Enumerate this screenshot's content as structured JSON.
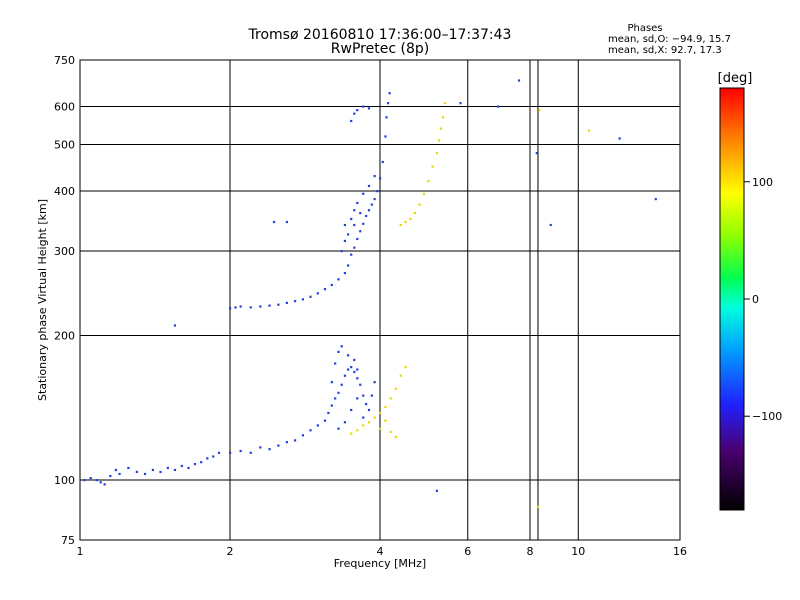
{
  "title_line1": "Tromsø 20160810 17:36:00–17:37:43",
  "title_line2": "RwPretec (8p)",
  "phases": {
    "heading": "Phases",
    "line_o": "mean, sd,O: −94.9, 15.7",
    "line_x": "mean, sd,X:  92.7, 17.3"
  },
  "colorbar": {
    "label": "[deg]",
    "range": [
      -180,
      180
    ],
    "ticks": [
      {
        "value": 100,
        "label": "100"
      },
      {
        "value": 0,
        "label": "0"
      },
      {
        "value": -100,
        "label": "−100"
      }
    ]
  },
  "chart_data": {
    "type": "scatter",
    "xlabel": "Frequency [MHz]",
    "ylabel": "Stationary phase Virtual Height [km]",
    "x_scale": "log2",
    "y_scale": "log",
    "xlim": [
      1,
      16
    ],
    "ylim": [
      75,
      750
    ],
    "x_ticks": [
      {
        "value": 1,
        "label": "1"
      },
      {
        "value": 2,
        "label": "2"
      },
      {
        "value": 4,
        "label": "4"
      },
      {
        "value": 6,
        "label": "6"
      },
      {
        "value": 8,
        "label": "8"
      },
      {
        "value": 10,
        "label": "10"
      },
      {
        "value": 16,
        "label": "16"
      }
    ],
    "x_gridlines": [
      2,
      4,
      6,
      8,
      8.3,
      10
    ],
    "y_ticks": [
      {
        "value": 75,
        "label": "75"
      },
      {
        "value": 100,
        "label": "100"
      },
      {
        "value": 200,
        "label": "200"
      },
      {
        "value": 300,
        "label": "300"
      },
      {
        "value": 400,
        "label": "400"
      },
      {
        "value": 500,
        "label": "500"
      },
      {
        "value": 600,
        "label": "600"
      },
      {
        "value": 750,
        "label": "750"
      }
    ],
    "y_gridlines": [
      100,
      200,
      300,
      400,
      500,
      600
    ],
    "series": [
      {
        "name": "O",
        "points": [
          [
            1.02,
            100
          ],
          [
            1.05,
            101
          ],
          [
            1.08,
            100
          ],
          [
            1.1,
            99
          ],
          [
            1.12,
            98
          ],
          [
            1.15,
            102
          ],
          [
            1.18,
            105
          ],
          [
            1.2,
            103
          ],
          [
            1.25,
            106
          ],
          [
            1.3,
            104
          ],
          [
            1.35,
            103
          ],
          [
            1.4,
            105
          ],
          [
            1.45,
            104
          ],
          [
            1.5,
            106
          ],
          [
            1.55,
            105
          ],
          [
            1.6,
            107
          ],
          [
            1.65,
            106
          ],
          [
            1.7,
            108
          ],
          [
            1.75,
            109
          ],
          [
            1.8,
            111
          ],
          [
            1.85,
            112
          ],
          [
            1.9,
            114
          ],
          [
            2.0,
            114
          ],
          [
            2.1,
            115
          ],
          [
            2.2,
            114
          ],
          [
            2.3,
            117
          ],
          [
            2.4,
            116
          ],
          [
            2.5,
            118
          ],
          [
            2.6,
            120
          ],
          [
            2.7,
            121
          ],
          [
            2.8,
            124
          ],
          [
            2.9,
            127
          ],
          [
            3.0,
            130
          ],
          [
            3.1,
            133
          ],
          [
            3.15,
            138
          ],
          [
            3.2,
            143
          ],
          [
            3.25,
            148
          ],
          [
            3.3,
            152
          ],
          [
            3.35,
            158
          ],
          [
            3.4,
            165
          ],
          [
            3.45,
            170
          ],
          [
            3.5,
            172
          ],
          [
            3.55,
            168
          ],
          [
            3.6,
            163
          ],
          [
            3.65,
            158
          ],
          [
            3.7,
            150
          ],
          [
            3.75,
            144
          ],
          [
            3.3,
            128
          ],
          [
            3.4,
            132
          ],
          [
            3.5,
            140
          ],
          [
            3.6,
            148
          ],
          [
            3.7,
            135
          ],
          [
            3.8,
            140
          ],
          [
            3.85,
            150
          ],
          [
            3.9,
            160
          ],
          [
            3.2,
            160
          ],
          [
            3.25,
            175
          ],
          [
            3.3,
            185
          ],
          [
            3.35,
            190
          ],
          [
            3.45,
            182
          ],
          [
            3.55,
            178
          ],
          [
            3.6,
            170
          ],
          [
            2.0,
            228
          ],
          [
            2.05,
            229
          ],
          [
            2.1,
            230
          ],
          [
            2.2,
            229
          ],
          [
            2.3,
            230
          ],
          [
            2.4,
            231
          ],
          [
            2.5,
            232
          ],
          [
            2.6,
            234
          ],
          [
            2.7,
            236
          ],
          [
            2.8,
            238
          ],
          [
            2.9,
            241
          ],
          [
            3.0,
            245
          ],
          [
            3.1,
            250
          ],
          [
            3.2,
            255
          ],
          [
            3.3,
            262
          ],
          [
            3.4,
            270
          ],
          [
            3.45,
            280
          ],
          [
            3.5,
            295
          ],
          [
            3.55,
            305
          ],
          [
            3.6,
            318
          ],
          [
            3.65,
            330
          ],
          [
            3.7,
            342
          ],
          [
            3.75,
            355
          ],
          [
            3.8,
            365
          ],
          [
            3.85,
            375
          ],
          [
            3.9,
            385
          ],
          [
            3.95,
            400
          ],
          [
            4.0,
            425
          ],
          [
            4.05,
            460
          ],
          [
            4.1,
            520
          ],
          [
            4.12,
            570
          ],
          [
            4.15,
            610
          ],
          [
            4.18,
            640
          ],
          [
            3.4,
            340
          ],
          [
            3.5,
            350
          ],
          [
            3.55,
            365
          ],
          [
            3.6,
            378
          ],
          [
            3.7,
            395
          ],
          [
            3.8,
            410
          ],
          [
            3.9,
            430
          ],
          [
            3.5,
            560
          ],
          [
            3.55,
            580
          ],
          [
            3.6,
            590
          ],
          [
            3.7,
            600
          ],
          [
            3.8,
            595
          ],
          [
            3.35,
            300
          ],
          [
            3.4,
            315
          ],
          [
            3.45,
            325
          ],
          [
            3.55,
            340
          ],
          [
            3.65,
            360
          ],
          [
            1.55,
            210
          ],
          [
            2.45,
            345
          ],
          [
            2.6,
            345
          ],
          [
            5.2,
            95
          ],
          [
            5.8,
            610
          ],
          [
            6.9,
            600
          ],
          [
            7.6,
            680
          ],
          [
            8.25,
            480
          ],
          [
            8.8,
            340
          ],
          [
            12.1,
            515
          ],
          [
            14.3,
            385
          ]
        ]
      },
      {
        "name": "X",
        "points": [
          [
            3.5,
            125
          ],
          [
            3.6,
            127
          ],
          [
            3.7,
            130
          ],
          [
            3.8,
            132
          ],
          [
            3.9,
            135
          ],
          [
            4.0,
            138
          ],
          [
            4.1,
            142
          ],
          [
            4.2,
            148
          ],
          [
            4.3,
            155
          ],
          [
            4.4,
            165
          ],
          [
            4.5,
            172
          ],
          [
            4.0,
            128
          ],
          [
            4.1,
            133
          ],
          [
            4.2,
            126
          ],
          [
            4.3,
            123
          ],
          [
            4.4,
            340
          ],
          [
            4.5,
            345
          ],
          [
            4.6,
            350
          ],
          [
            4.7,
            360
          ],
          [
            4.8,
            375
          ],
          [
            4.9,
            395
          ],
          [
            5.0,
            420
          ],
          [
            5.1,
            450
          ],
          [
            5.2,
            480
          ],
          [
            5.25,
            510
          ],
          [
            5.3,
            540
          ],
          [
            5.35,
            570
          ],
          [
            5.4,
            610
          ],
          [
            8.35,
            590
          ],
          [
            10.5,
            535
          ],
          [
            8.3,
            88
          ]
        ]
      }
    ]
  }
}
